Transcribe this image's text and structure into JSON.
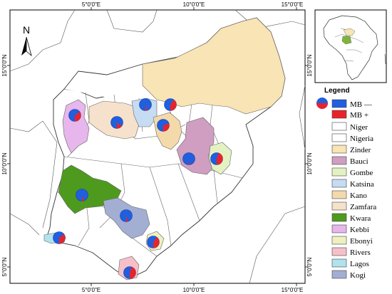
{
  "axes": {
    "top_ticks": [
      "5°0'0\"E",
      "10°0'0\"E",
      "15°0'0\"E"
    ],
    "bottom_ticks": [
      "5°0'0\"E",
      "10°0'0\"E",
      "15°0'0\"E"
    ],
    "left_ticks": [
      "15°0'0\"N",
      "10°0'0\"N",
      "5°0'0\"N"
    ],
    "right_ticks": [
      "15°0'0\"N",
      "10°0'0\"N",
      "5°0'0\"N"
    ]
  },
  "north_arrow": {
    "label": "N"
  },
  "legend": {
    "title": "Legend",
    "markers": [
      {
        "label": "MB —",
        "color": "#1f5fe0"
      },
      {
        "label": "MB +",
        "color": "#e8242a"
      }
    ],
    "areas": [
      {
        "label": "Niger",
        "color": "#ffffff"
      },
      {
        "label": "Nigeria",
        "color": "#ffffff"
      },
      {
        "label": "Zinder",
        "color": "#f8e4b4"
      },
      {
        "label": "Bauci",
        "color": "#cf9ec1"
      },
      {
        "label": "Gombe",
        "color": "#e4f2c3"
      },
      {
        "label": "Katsina",
        "color": "#c5dcf3"
      },
      {
        "label": "Kano",
        "color": "#f4d9ab"
      },
      {
        "label": "Zamfara",
        "color": "#f6e2cc"
      },
      {
        "label": "Kwara",
        "color": "#4e9a1e"
      },
      {
        "label": "Kebbi",
        "color": "#e6b6ec"
      },
      {
        "label": "Ebonyi",
        "color": "#eef0c0"
      },
      {
        "label": "Rivers",
        "color": "#f6c0c8"
      },
      {
        "label": "Lagos",
        "color": "#b1e2ee"
      },
      {
        "label": "Kogi",
        "color": "#a3aed3"
      }
    ]
  },
  "sites": [
    {
      "name": "Kebbi-site",
      "pos_share": 0.35
    },
    {
      "name": "Zamfara-site",
      "pos_share": 0.15
    },
    {
      "name": "Katsina-site",
      "pos_share": 0.05
    },
    {
      "name": "Zinder-site",
      "pos_share": 0.4
    },
    {
      "name": "Kano-site",
      "pos_share": 0.3
    },
    {
      "name": "Bauci-site",
      "pos_share": 0.02
    },
    {
      "name": "Gombe-site",
      "pos_share": 0.45
    },
    {
      "name": "Kwara-site",
      "pos_share": 0.05
    },
    {
      "name": "Kogi-site",
      "pos_share": 0.05
    },
    {
      "name": "Lagos-site",
      "pos_share": 0.35
    },
    {
      "name": "Ebonyi-site",
      "pos_share": 0.4
    },
    {
      "name": "Rivers-site",
      "pos_share": 0.45
    }
  ]
}
